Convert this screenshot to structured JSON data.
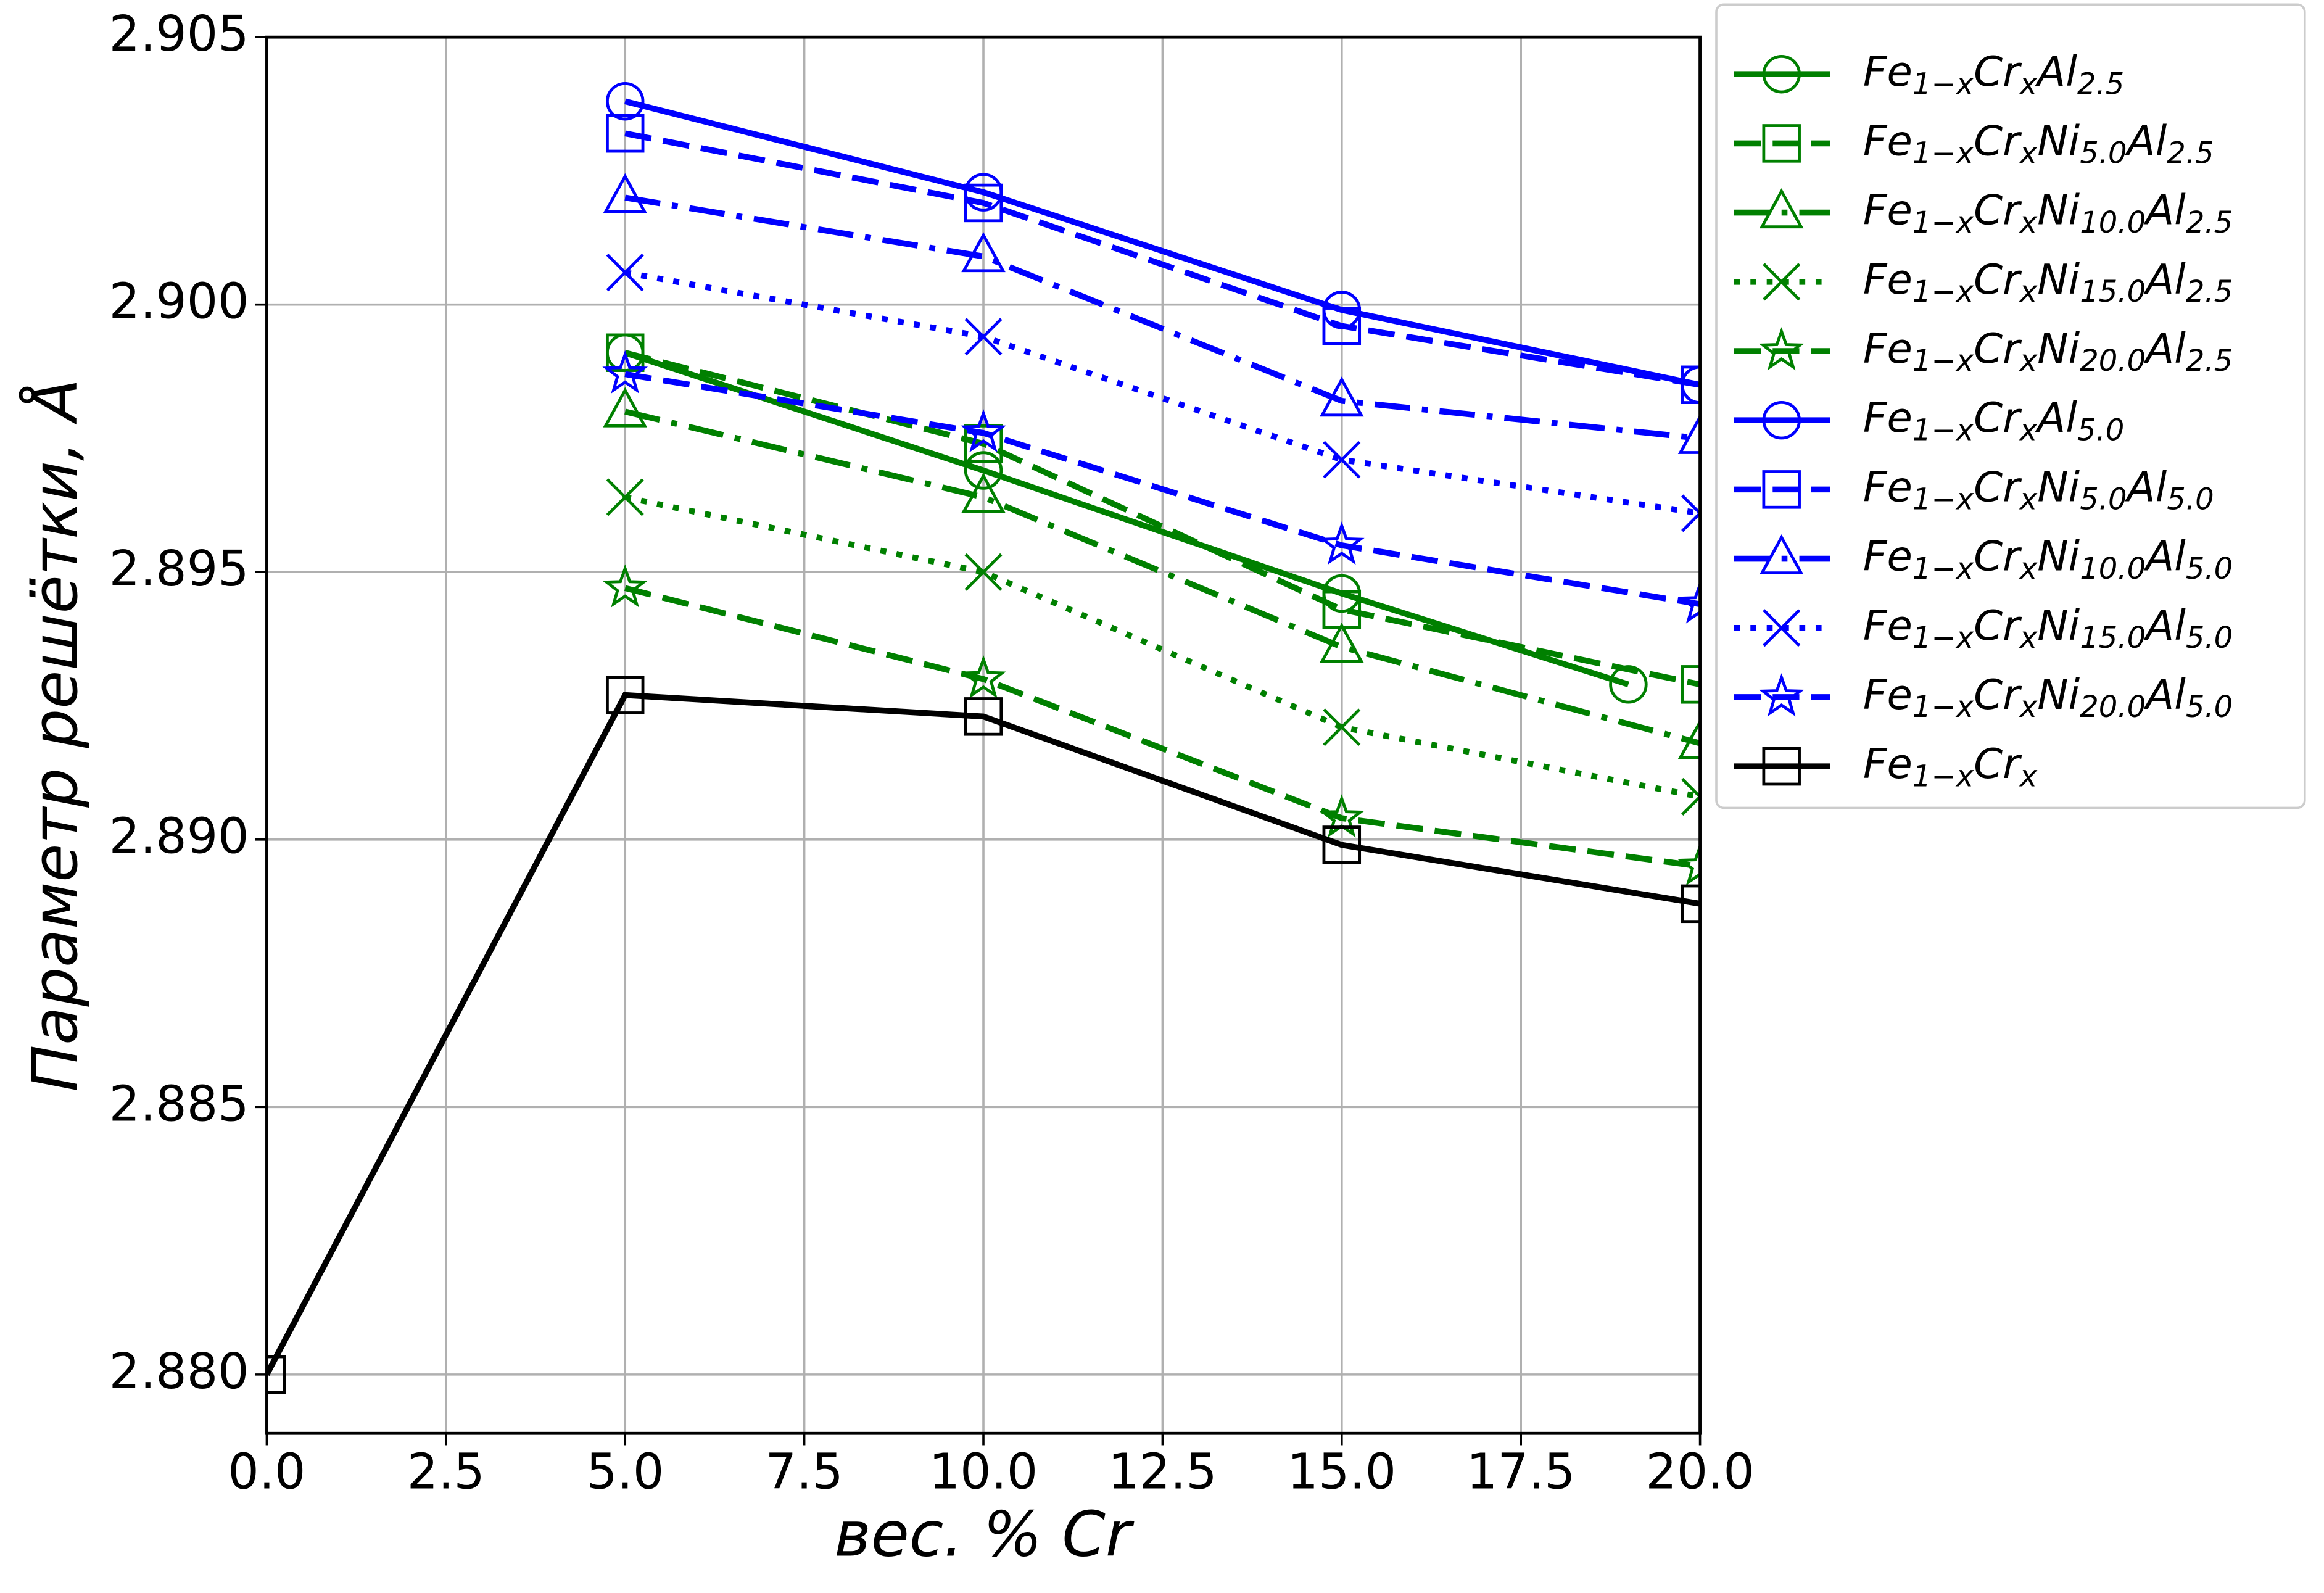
{
  "chart_data": {
    "type": "line",
    "xlabel": "вес. % Cr",
    "ylabel": "Параметр решётки, Å",
    "xlim": [
      0,
      20
    ],
    "ylim": [
      2.8789,
      2.905
    ],
    "xticks": [
      {
        "value": 0,
        "label": "0.0"
      },
      {
        "value": 2.5,
        "label": "2.5"
      },
      {
        "value": 5,
        "label": "5.0"
      },
      {
        "value": 7.5,
        "label": "7.5"
      },
      {
        "value": 10,
        "label": "10.0"
      },
      {
        "value": 12.5,
        "label": "12.5"
      },
      {
        "value": 15,
        "label": "15.0"
      },
      {
        "value": 17.5,
        "label": "17.5"
      },
      {
        "value": 20,
        "label": "20.0"
      }
    ],
    "yticks": [
      {
        "value": 2.88,
        "label": "2.880"
      },
      {
        "value": 2.885,
        "label": "2.885"
      },
      {
        "value": 2.89,
        "label": "2.890"
      },
      {
        "value": 2.895,
        "label": "2.895"
      },
      {
        "value": 2.9,
        "label": "2.900"
      },
      {
        "value": 2.905,
        "label": "2.905"
      }
    ],
    "grid": true,
    "legend": "outside-upper-right",
    "series": [
      {
        "name": "Fe1−xCrxAl2.5",
        "color": "#008000",
        "marker": "circle",
        "linestyle": "solid",
        "x": [
          5,
          10,
          15,
          19
        ],
        "values": [
          2.8991,
          2.8969,
          2.8946,
          2.8929
        ]
      },
      {
        "name": "Fe1−xCrxNi5.0Al2.5",
        "color": "#008000",
        "marker": "square",
        "linestyle": "dashed",
        "x": [
          5,
          10,
          15,
          20
        ],
        "values": [
          2.8991,
          2.8974,
          2.8943,
          2.8929
        ]
      },
      {
        "name": "Fe1−xCrxNi10.0Al2.5",
        "color": "#008000",
        "marker": "triangle",
        "linestyle": "dashdot",
        "x": [
          5,
          10,
          15,
          20
        ],
        "values": [
          2.898,
          2.8964,
          2.8936,
          2.8918
        ]
      },
      {
        "name": "Fe1−xCrxNi15.0Al2.5",
        "color": "#008000",
        "marker": "x",
        "linestyle": "dotted",
        "x": [
          5,
          10,
          15,
          20
        ],
        "values": [
          2.8964,
          2.895,
          2.8921,
          2.8908
        ]
      },
      {
        "name": "Fe1−xCrxNi20.0Al2.5",
        "color": "#008000",
        "marker": "star",
        "linestyle": "dashed",
        "x": [
          5,
          10,
          15,
          20
        ],
        "values": [
          2.8947,
          2.893,
          2.8904,
          2.8895
        ]
      },
      {
        "name": "Fe1−xCrxAl5.0",
        "color": "#0000ff",
        "marker": "circle",
        "linestyle": "solid",
        "x": [
          5,
          10,
          15,
          20
        ],
        "values": [
          2.9038,
          2.9021,
          2.8999,
          2.8985
        ]
      },
      {
        "name": "Fe1−xCrxNi5.0Al5.0",
        "color": "#0000ff",
        "marker": "square",
        "linestyle": "dashed",
        "x": [
          5,
          10,
          15,
          20
        ],
        "values": [
          2.9032,
          2.9019,
          2.8996,
          2.8985
        ]
      },
      {
        "name": "Fe1−xCrxNi10.0Al5.0",
        "color": "#0000ff",
        "marker": "triangle",
        "linestyle": "dashdot",
        "x": [
          5,
          10,
          15,
          20
        ],
        "values": [
          2.902,
          2.9009,
          2.8982,
          2.8975
        ]
      },
      {
        "name": "Fe1−xCrxNi15.0Al5.0",
        "color": "#0000ff",
        "marker": "x",
        "linestyle": "dotted",
        "x": [
          5,
          10,
          15,
          20
        ],
        "values": [
          2.9006,
          2.8994,
          2.8971,
          2.8961
        ]
      },
      {
        "name": "Fe1−xCrxNi20.0Al5.0",
        "color": "#0000ff",
        "marker": "star",
        "linestyle": "dashed",
        "x": [
          5,
          10,
          15,
          20
        ],
        "values": [
          2.8987,
          2.8976,
          2.8955,
          2.8944
        ]
      },
      {
        "name": "Fe1−xCrx",
        "color": "#000000",
        "marker": "square",
        "linestyle": "solid",
        "x": [
          0,
          5,
          10,
          15,
          20
        ],
        "values": [
          2.88,
          2.8927,
          2.8923,
          2.8899,
          2.8888
        ]
      }
    ]
  }
}
